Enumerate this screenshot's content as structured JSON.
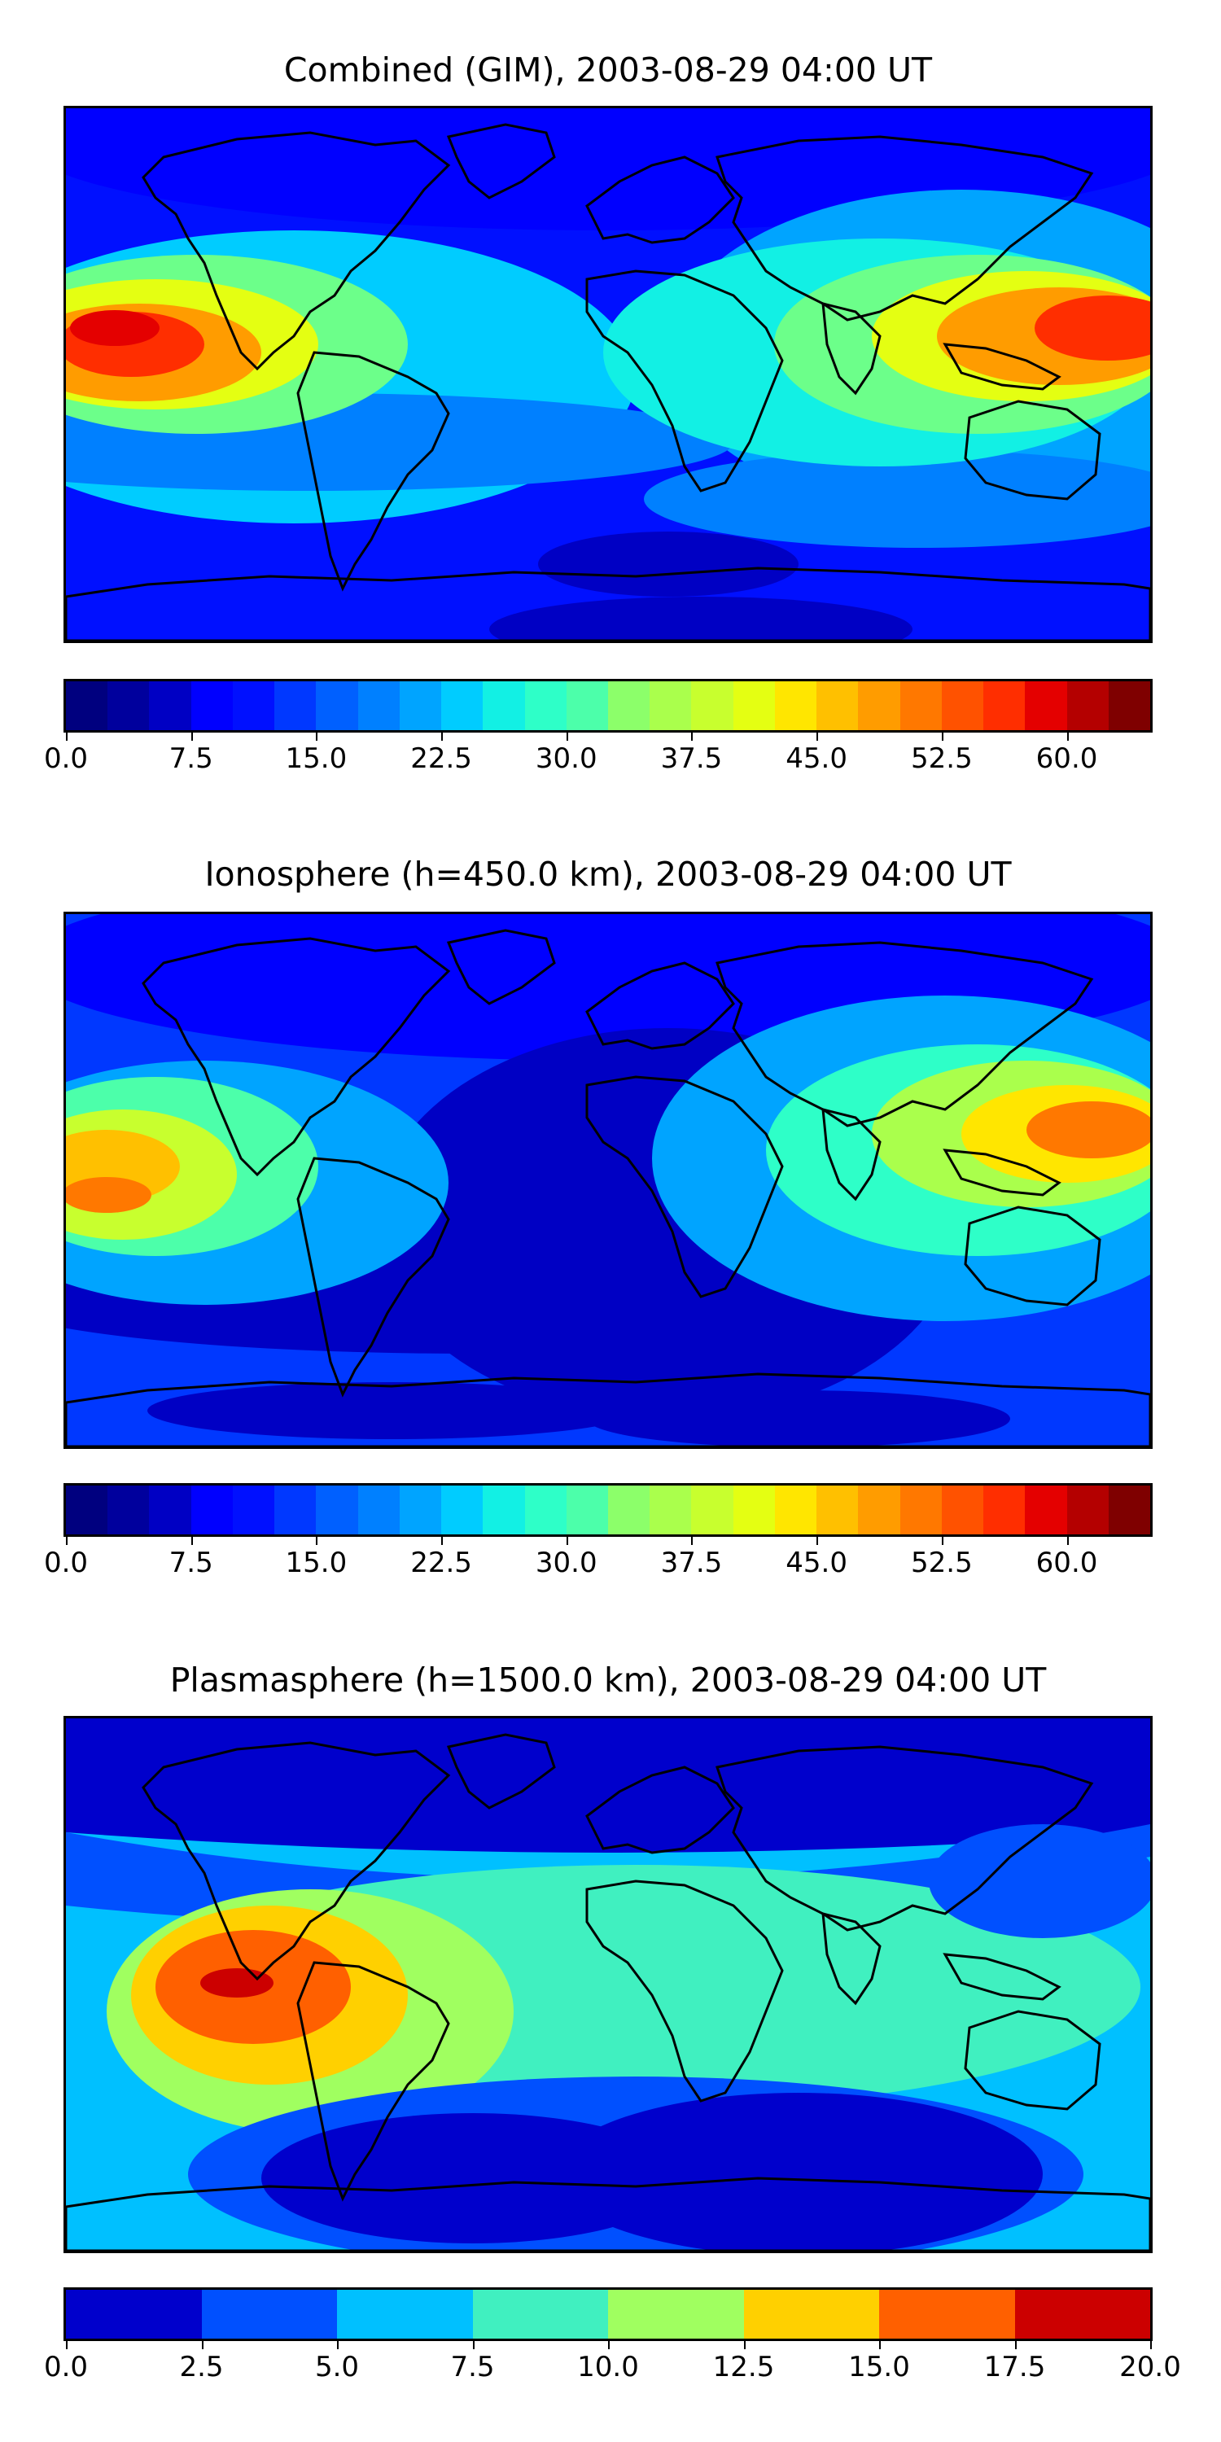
{
  "panels": [
    {
      "title": "Combined (GIM), 2003-08-29 04:00 UT",
      "colorbar": {
        "levels": 26,
        "colors": [
          "#00007f",
          "#00009d",
          "#0000c4",
          "#0000ff",
          "#0010ff",
          "#0038ff",
          "#0060ff",
          "#0080ff",
          "#00a4ff",
          "#00ccff",
          "#12f0e4",
          "#2effc8",
          "#4cffaa",
          "#6cff8a",
          "#8cff6a",
          "#aaff4c",
          "#c8ff2e",
          "#e4ff12",
          "#ffe600",
          "#ffc000",
          "#ff9c00",
          "#ff7800",
          "#ff5200",
          "#ff2e00",
          "#e40000",
          "#b40000",
          "#7f0000"
        ],
        "tick_labels": [
          "0.0",
          "7.5",
          "15.0",
          "22.5",
          "30.0",
          "37.5",
          "45.0",
          "52.5",
          "60.0"
        ],
        "tick_values": [
          0,
          7.5,
          15,
          22.5,
          30,
          37.5,
          45,
          52.5,
          60
        ],
        "range": [
          0,
          65
        ]
      },
      "field": "combined"
    },
    {
      "title": "Ionosphere  (h=450.0 km), 2003-08-29 04:00 UT",
      "colorbar": {
        "levels": 26,
        "colors": [
          "#00007f",
          "#00009d",
          "#0000c4",
          "#0000ff",
          "#0010ff",
          "#0038ff",
          "#0060ff",
          "#0080ff",
          "#00a4ff",
          "#00ccff",
          "#12f0e4",
          "#2effc8",
          "#4cffaa",
          "#6cff8a",
          "#8cff6a",
          "#aaff4c",
          "#c8ff2e",
          "#e4ff12",
          "#ffe600",
          "#ffc000",
          "#ff9c00",
          "#ff7800",
          "#ff5200",
          "#ff2e00",
          "#e40000",
          "#b40000",
          "#7f0000"
        ],
        "tick_labels": [
          "0.0",
          "7.5",
          "15.0",
          "22.5",
          "30.0",
          "37.5",
          "45.0",
          "52.5",
          "60.0"
        ],
        "tick_values": [
          0,
          7.5,
          15,
          22.5,
          30,
          37.5,
          45,
          52.5,
          60
        ],
        "range": [
          0,
          65
        ]
      },
      "field": "iono"
    },
    {
      "title": "Plasmasphere (h=1500.0 km), 2003-08-29 04:00 UT",
      "colorbar": {
        "levels": 8,
        "colors": [
          "#0000cc",
          "#0050ff",
          "#00c0ff",
          "#40f0c0",
          "#a0ff60",
          "#ffd000",
          "#ff6000",
          "#cc0000"
        ],
        "tick_labels": [
          "0.0",
          "2.5",
          "5.0",
          "7.5",
          "10.0",
          "12.5",
          "15.0",
          "17.5",
          "20.0"
        ],
        "tick_values": [
          0,
          2.5,
          5,
          7.5,
          10,
          12.5,
          15,
          17.5,
          20
        ],
        "range": [
          0,
          20
        ]
      },
      "field": "plasma"
    }
  ]
}
